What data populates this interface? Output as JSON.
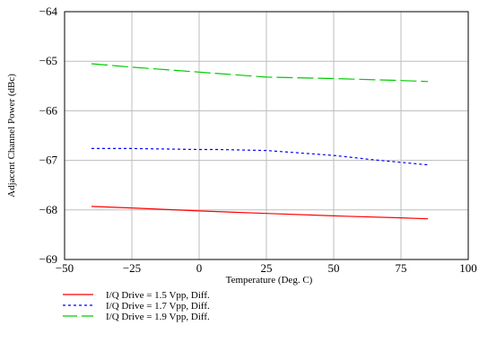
{
  "chart_data": {
    "type": "line",
    "title": "",
    "xlabel": "Temperature (Deg. C)",
    "ylabel": "Adjacent Channel Power (dBc)",
    "xlim": [
      -50,
      100
    ],
    "ylim": [
      -69,
      -64
    ],
    "xticks": [
      -50,
      -25,
      0,
      25,
      50,
      75,
      100
    ],
    "yticks": [
      -64,
      -65,
      -66,
      -67,
      -68,
      -69
    ],
    "xtick_labels": [
      "−50",
      "−25",
      "0",
      "25",
      "50",
      "75",
      "100"
    ],
    "ytick_labels": [
      "−64",
      "−65",
      "−66",
      "−67",
      "−68",
      "−69"
    ],
    "grid": true,
    "legend_position": "bottom-left, below plot",
    "series": [
      {
        "name": "I/Q Drive = 1.5 Vpp, Diff.",
        "color": "#ff0000",
        "style": "solid",
        "x": [
          -40,
          -25,
          0,
          25,
          50,
          75,
          85
        ],
        "y": [
          -67.93,
          -67.96,
          -68.02,
          -68.07,
          -68.12,
          -68.16,
          -68.18
        ]
      },
      {
        "name": "I/Q Drive = 1.7 Vpp, Diff.",
        "color": "#0000ff",
        "style": "dotted",
        "x": [
          -40,
          -25,
          0,
          7,
          25,
          30,
          50,
          65,
          85
        ],
        "y": [
          -66.76,
          -66.76,
          -66.78,
          -66.78,
          -66.8,
          -66.82,
          -66.9,
          -66.99,
          -67.09
        ]
      },
      {
        "name": "I/Q Drive = 1.9 Vpp, Diff.",
        "color": "#00cc00",
        "style": "dashed",
        "x": [
          -40,
          -25,
          0,
          25,
          50,
          75,
          85
        ],
        "y": [
          -65.05,
          -65.12,
          -65.22,
          -65.32,
          -65.35,
          -65.39,
          -65.41
        ]
      }
    ]
  }
}
